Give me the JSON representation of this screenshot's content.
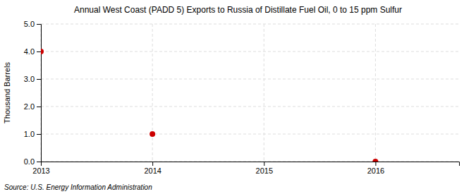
{
  "chart_data": {
    "type": "scatter",
    "title": "Annual West Coast (PADD 5) Exports to Russia of Distillate Fuel Oil, 0 to 15 ppm Sulfur",
    "ylabel": "Thousand Barrels",
    "source": "Source: U.S. Energy Information Administration",
    "x": [
      2013,
      2014,
      2016
    ],
    "values": [
      4.0,
      1.0,
      0.0
    ],
    "color": "#cc0000",
    "xlim": [
      2013,
      2016.75
    ],
    "ylim": [
      0.0,
      5.0
    ],
    "xticks": [
      2013,
      2014,
      2015,
      2016
    ],
    "yticks": [
      {
        "value": 0.0,
        "label": "0.0"
      },
      {
        "value": 1.0,
        "label": "1.0"
      },
      {
        "value": 2.0,
        "label": "2.0"
      },
      {
        "value": 3.0,
        "label": "3.0"
      },
      {
        "value": 4.0,
        "label": "4.0"
      },
      {
        "value": 5.0,
        "label": "5.0"
      }
    ],
    "grid": true
  }
}
